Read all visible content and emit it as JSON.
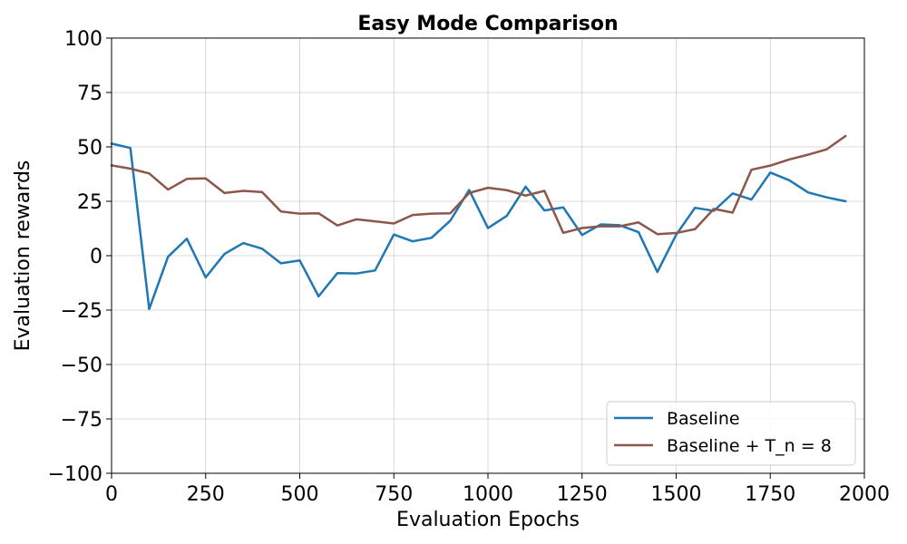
{
  "chart_data": {
    "type": "line",
    "title": "Easy Mode Comparison",
    "xlabel": "Evaluation Epochs",
    "ylabel": "Evaluation rewards",
    "xlim": [
      0,
      2000
    ],
    "ylim": [
      -100,
      100
    ],
    "xticks": [
      0,
      250,
      500,
      750,
      1000,
      1250,
      1500,
      1750,
      2000
    ],
    "yticks": [
      -100,
      -75,
      -50,
      -25,
      0,
      25,
      50,
      75,
      100
    ],
    "xtick_labels": [
      "0",
      "250",
      "500",
      "750",
      "1000",
      "1250",
      "1500",
      "1750",
      "2000"
    ],
    "ytick_labels": [
      "−100",
      "−75",
      "−50",
      "−25",
      "0",
      "25",
      "50",
      "75",
      "100"
    ],
    "grid": true,
    "legend_position": "lower-right",
    "x": [
      0,
      50,
      100,
      150,
      200,
      250,
      300,
      350,
      400,
      450,
      500,
      550,
      600,
      650,
      700,
      750,
      800,
      850,
      900,
      950,
      1000,
      1050,
      1100,
      1150,
      1200,
      1250,
      1300,
      1350,
      1400,
      1450,
      1500,
      1550,
      1600,
      1650,
      1700,
      1750,
      1800,
      1850,
      1900,
      1950
    ],
    "series": [
      {
        "name": "Baseline",
        "color": "#1f77b4",
        "values": [
          51.5,
          49.5,
          -24.5,
          -0.5,
          7.8,
          -10,
          0.8,
          5.8,
          3.2,
          -3.5,
          -2.2,
          -18.7,
          -8,
          -8.2,
          -6.8,
          9.7,
          6.6,
          8.2,
          16.1,
          30.2,
          12.7,
          18.3,
          31.7,
          20.8,
          22.2,
          9.5,
          14.4,
          14,
          10.8,
          -7.5,
          9.6,
          22,
          20.6,
          28.6,
          25.8,
          38.2,
          34.7,
          29.1,
          26.8,
          25
        ]
      },
      {
        "name": "Baseline + T_n = 8",
        "color": "#8c564b",
        "values": [
          41.5,
          40,
          37.8,
          30.4,
          35.3,
          35.5,
          28.8,
          29.8,
          29.2,
          20.3,
          19.3,
          19.5,
          13.9,
          16.7,
          15.8,
          14.8,
          18.7,
          19.3,
          19.5,
          28.8,
          31.2,
          30.1,
          27.6,
          29.8,
          10.5,
          12.7,
          13.5,
          13.5,
          15.3,
          9.9,
          10.4,
          12.2,
          21.5,
          19.8,
          39.5,
          41.4,
          44.2,
          46.4,
          48.9,
          55
        ]
      }
    ]
  }
}
